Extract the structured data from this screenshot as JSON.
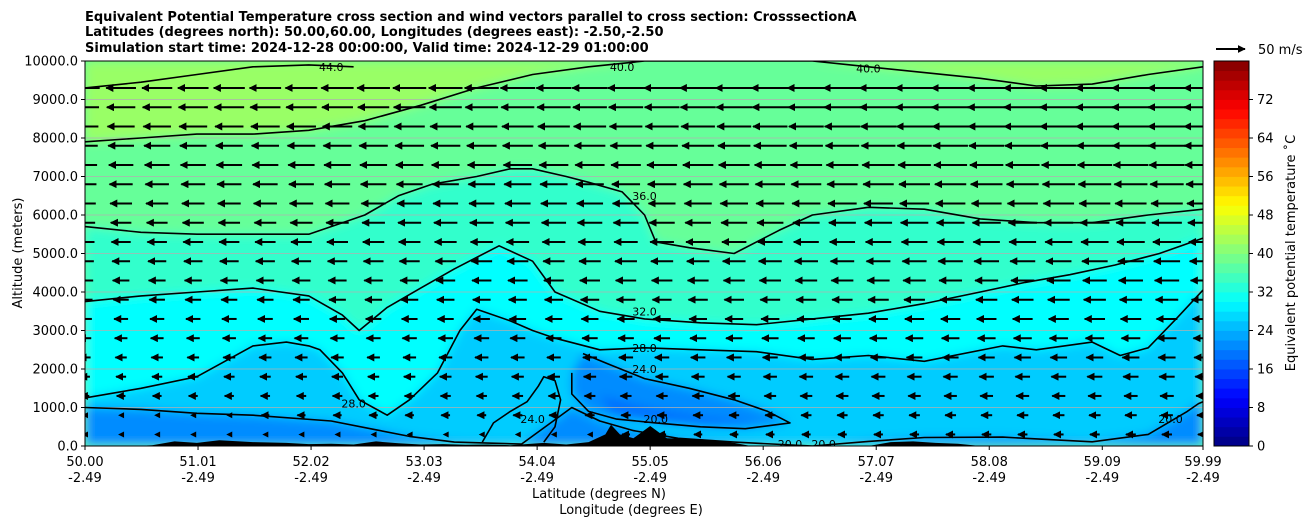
{
  "chart_data": {
    "type": "heatmap",
    "title_lines": [
      "Equivalent Potential Temperature cross section and wind vectors parallel to cross section: CrosssectionA",
      "Latitudes (degrees north): 50.00,60.00, Longitudes (degrees east): -2.50,-2.50",
      "Simulation start time: 2024-12-28 00:00:00, Valid time: 2024-12-29 01:00:00"
    ],
    "xlabel_lines": [
      "Latitude (degrees N)",
      "Longitude (degrees E)"
    ],
    "ylabel": "Altitude (meters)",
    "x_ticks": [
      {
        "lat": "50.00",
        "lon": "-2.49"
      },
      {
        "lat": "51.01",
        "lon": "-2.49"
      },
      {
        "lat": "52.02",
        "lon": "-2.49"
      },
      {
        "lat": "53.03",
        "lon": "-2.49"
      },
      {
        "lat": "54.04",
        "lon": "-2.49"
      },
      {
        "lat": "55.05",
        "lon": "-2.49"
      },
      {
        "lat": "56.06",
        "lon": "-2.49"
      },
      {
        "lat": "57.07",
        "lon": "-2.49"
      },
      {
        "lat": "58.08",
        "lon": "-2.49"
      },
      {
        "lat": "59.09",
        "lon": "-2.49"
      },
      {
        "lat": "59.99",
        "lon": "-2.49"
      }
    ],
    "xlim": [
      50.0,
      59.99
    ],
    "ylim": [
      0,
      10000
    ],
    "y_ticks": [
      "0.0",
      "1000.0",
      "2000.0",
      "3000.0",
      "4000.0",
      "5000.0",
      "6000.0",
      "7000.0",
      "8000.0",
      "9000.0",
      "10000.0"
    ],
    "grid": "horizontal",
    "colorbar": {
      "label": "Equivalent potential temperature ˚C",
      "ticks": [
        "0",
        "8",
        "16",
        "24",
        "32",
        "40",
        "48",
        "56",
        "64",
        "72"
      ],
      "range": [
        0,
        80
      ],
      "colormap": "jet"
    },
    "quiver_key": {
      "label": "50 m/s"
    },
    "contour_levels": [
      20,
      24,
      28,
      32,
      36,
      40,
      44
    ],
    "contour_labels": [
      {
        "lat": 52.4,
        "alt": 1100,
        "text": "28.0"
      },
      {
        "lat": 54.0,
        "alt": 700,
        "text": "24.0"
      },
      {
        "lat": 55.0,
        "alt": 3500,
        "text": "32.0"
      },
      {
        "lat": 55.0,
        "alt": 2550,
        "text": "28.0"
      },
      {
        "lat": 55.0,
        "alt": 2000,
        "text": "24.0"
      },
      {
        "lat": 55.1,
        "alt": 700,
        "text": "20.0"
      },
      {
        "lat": 55.0,
        "alt": 6500,
        "text": "36.0"
      },
      {
        "lat": 54.8,
        "alt": 9850,
        "text": "40.0"
      },
      {
        "lat": 57.0,
        "alt": 9800,
        "text": "40.0"
      },
      {
        "lat": 52.2,
        "alt": 9850,
        "text": "44.0"
      },
      {
        "lat": 56.3,
        "alt": 50,
        "text": "20.0"
      },
      {
        "lat": 56.6,
        "alt": 50,
        "text": "20.0"
      },
      {
        "lat": 59.7,
        "alt": 700,
        "text": "20.0"
      }
    ],
    "wind": "westward (parallel to section), 5-30 m/s, stronger aloft"
  }
}
